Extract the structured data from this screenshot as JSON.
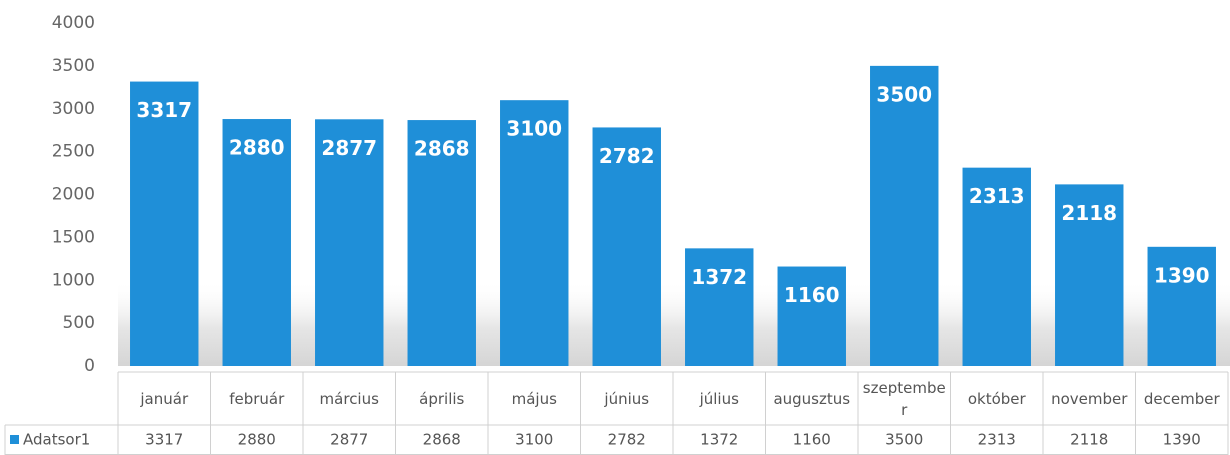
{
  "chart_data": {
    "type": "bar",
    "categories": [
      "január",
      "február",
      "március",
      "április",
      "május",
      "június",
      "július",
      "augusztus",
      "szeptember",
      "október",
      "november",
      "december"
    ],
    "series": [
      {
        "name": "Adatsor1",
        "color": "#1f8fd8",
        "values": [
          3317,
          2880,
          2877,
          2868,
          3100,
          2782,
          1372,
          1160,
          3500,
          2313,
          2118,
          1390
        ]
      }
    ],
    "ylim": [
      0,
      4000
    ],
    "yticks": [
      0,
      500,
      1000,
      1500,
      2000,
      2500,
      3000,
      3500,
      4000
    ],
    "grid": false,
    "data_labels": true,
    "data_table": true
  }
}
